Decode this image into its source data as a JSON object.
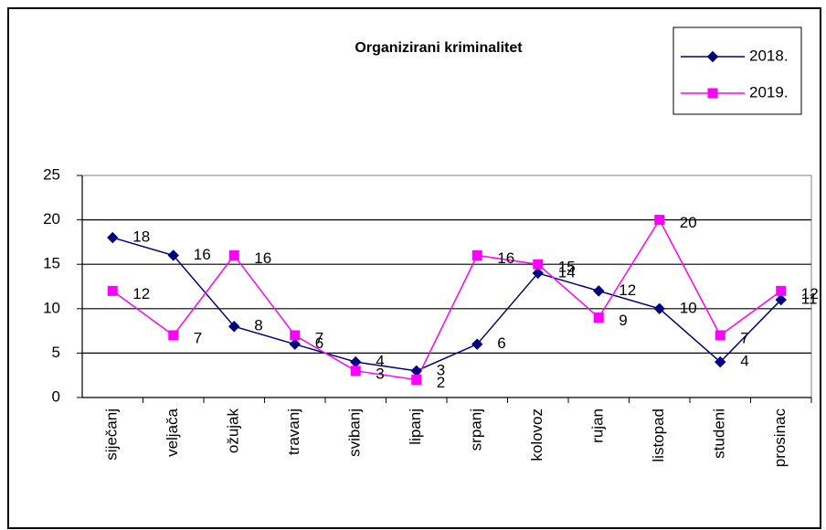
{
  "chart_data": {
    "type": "line",
    "title": "Organizirani kriminalitet",
    "categories": [
      "siječanj",
      "veljača",
      "ožujak",
      "travanj",
      "svibanj",
      "lipanj",
      "srpanj",
      "kolovoz",
      "rujan",
      "listopad",
      "studeni",
      "prosinac"
    ],
    "series": [
      {
        "name": "2018.",
        "color": "#000080",
        "marker": "diamond",
        "values": [
          18,
          16,
          8,
          6,
          4,
          3,
          6,
          14,
          12,
          10,
          4,
          11
        ]
      },
      {
        "name": "2019.",
        "color": "#ff00ff",
        "marker": "square",
        "values": [
          12,
          7,
          16,
          7,
          3,
          2,
          16,
          15,
          9,
          20,
          7,
          12
        ]
      }
    ],
    "ylim": [
      0,
      25
    ],
    "yticks": [
      0,
      5,
      10,
      15,
      20,
      25
    ],
    "grid": true,
    "legend": "top-right"
  }
}
